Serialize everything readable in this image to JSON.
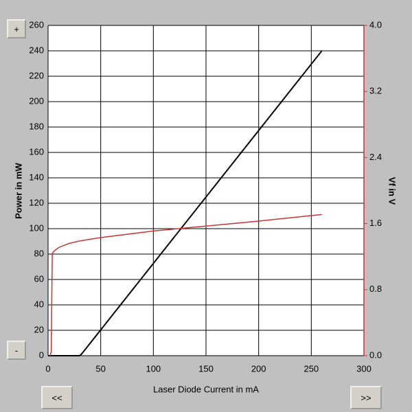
{
  "controls": {
    "zoom_in": "+",
    "zoom_out": "-",
    "prev": "<<",
    "next": ">>"
  },
  "chart_data": {
    "type": "line",
    "xlabel": "Laser Diode Current in mA",
    "ylabel": "Power  in mW",
    "y2label": "Vf in V",
    "xlim": [
      0,
      300
    ],
    "xticks": [
      0,
      50,
      100,
      150,
      200,
      250,
      300
    ],
    "ylim": [
      0,
      260
    ],
    "yticks": [
      0,
      20,
      40,
      60,
      80,
      100,
      120,
      140,
      160,
      180,
      200,
      220,
      240,
      260
    ],
    "y2lim": [
      0,
      4
    ],
    "y2ticks": [
      {
        "value": 0,
        "label": "0.0"
      },
      0.8,
      1.6,
      2.4,
      3.2,
      {
        "value": 4,
        "label": "4.0"
      }
    ],
    "grid": true,
    "series": [
      {
        "color": "#000000",
        "x": [
          0,
          30,
          32,
          260
        ],
        "values": [
          0,
          0,
          1.5,
          240
        ]
      },
      {
        "color": "#cc3333",
        "axis": "y2",
        "x": [
          2,
          3,
          4,
          6,
          10,
          20,
          30,
          50,
          100,
          150,
          200,
          260
        ],
        "values": [
          0,
          0.05,
          1.24,
          1.27,
          1.31,
          1.36,
          1.39,
          1.43,
          1.51,
          1.57,
          1.63,
          1.71
        ]
      }
    ]
  }
}
